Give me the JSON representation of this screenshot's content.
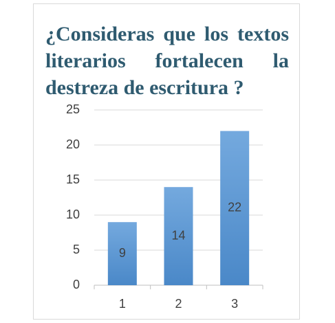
{
  "chart_data": {
    "type": "bar",
    "title": "¿Consideras que los textos literarios fortalecen la destreza de escritura ?",
    "categories": [
      "1",
      "2",
      "3"
    ],
    "values": [
      9,
      14,
      22
    ],
    "color": "#5b9bd5",
    "ylim": [
      0,
      25
    ],
    "yticks": [
      0,
      5,
      10,
      15,
      20,
      25
    ],
    "grid": true
  }
}
